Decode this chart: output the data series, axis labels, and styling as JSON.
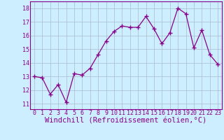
{
  "x": [
    0,
    1,
    2,
    3,
    4,
    5,
    6,
    7,
    8,
    9,
    10,
    11,
    12,
    13,
    14,
    15,
    16,
    17,
    18,
    19,
    20,
    21,
    22,
    23
  ],
  "y": [
    13.0,
    12.9,
    11.7,
    12.4,
    11.1,
    13.2,
    13.1,
    13.6,
    14.6,
    15.6,
    16.3,
    16.7,
    16.6,
    16.6,
    17.4,
    16.5,
    15.4,
    16.2,
    18.0,
    17.6,
    15.1,
    16.4,
    14.6,
    13.9
  ],
  "line_color": "#880088",
  "marker": "+",
  "marker_size": 4,
  "marker_color": "#880088",
  "bg_color": "#cceeff",
  "grid_color": "#aabbcc",
  "axis_color": "#880088",
  "xlabel": "Windchill (Refroidissement éolien,°C)",
  "xlabel_color": "#880088",
  "ylim": [
    10.6,
    18.5
  ],
  "yticks": [
    11,
    12,
    13,
    14,
    15,
    16,
    17,
    18
  ],
  "xticks": [
    0,
    1,
    2,
    3,
    4,
    5,
    6,
    7,
    8,
    9,
    10,
    11,
    12,
    13,
    14,
    15,
    16,
    17,
    18,
    19,
    20,
    21,
    22,
    23
  ],
  "tick_label_color": "#880088",
  "tick_label_size": 6,
  "xlabel_size": 7.5,
  "linewidth": 0.9
}
